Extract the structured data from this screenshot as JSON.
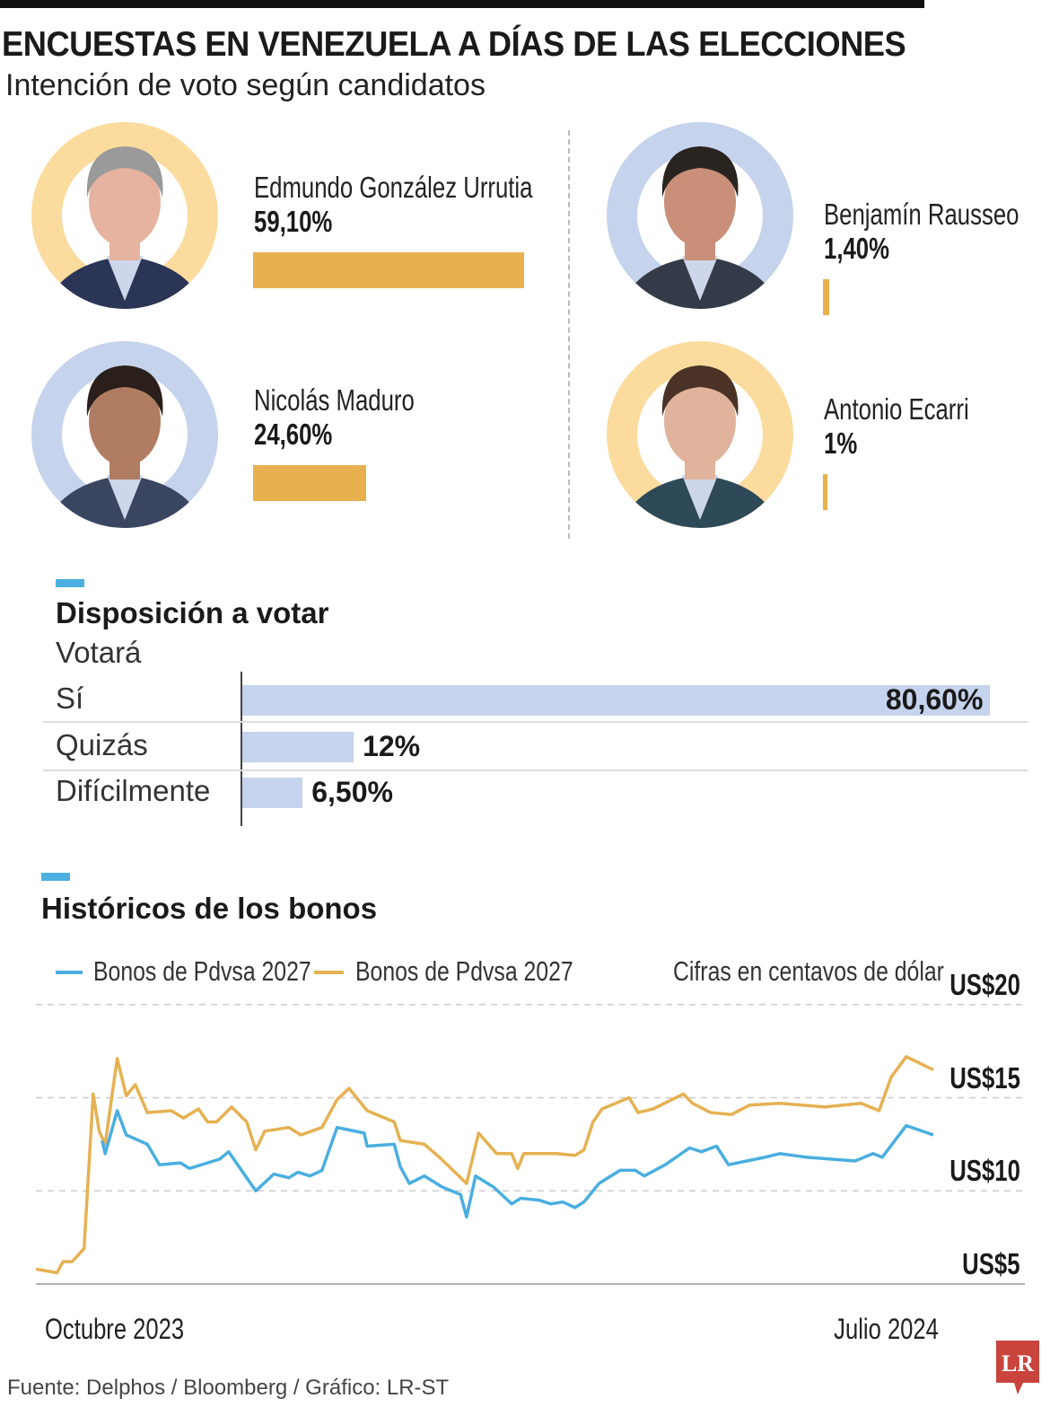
{
  "header": {
    "title": "ENCUESTAS EN VENEZUELA A DÍAS DE LAS ELECCIONES",
    "subtitle": "Intención de voto según candidatos"
  },
  "colors": {
    "bar_orange": "#e8b04f",
    "ring_orange": "#fbdc9e",
    "ring_blue": "#c6d3ec",
    "bar_blue": "#c5d3ec",
    "accent_blue": "#4bb0e0",
    "line_blue": "#4aaee0",
    "line_orange": "#e5b152",
    "logo_red": "#c9443c"
  },
  "candidates": [
    {
      "name": "Edmundo González Urrutia",
      "value_label": "59,10%",
      "value": 59.1,
      "ring": "orange"
    },
    {
      "name": "Nicolás Maduro",
      "value_label": "24,60%",
      "value": 24.6,
      "ring": "blue"
    },
    {
      "name": "Benjamín Rausseo",
      "value_label": "1,40%",
      "value": 1.4,
      "ring": "blue"
    },
    {
      "name": "Antonio Ecarri",
      "value_label": "1%",
      "value": 1.0,
      "ring": "orange"
    }
  ],
  "disposition": {
    "title": "Disposición a votar",
    "subtitle": "Votará",
    "rows": [
      {
        "label": "Sí",
        "value_label": "80,60%",
        "value": 80.6
      },
      {
        "label": "Quizás",
        "value_label": "12%",
        "value": 12
      },
      {
        "label": "Difícilmente",
        "value_label": "6,50%",
        "value": 6.5
      }
    ]
  },
  "chart_data": {
    "type": "line",
    "title": "Históricos de los bonos",
    "note": "Cifras en centavos de dólar",
    "legend_position": "top-left",
    "grid": true,
    "x_tick_labels": [
      "Octubre 2023",
      "Julio 2024"
    ],
    "xlim": [
      "2023-10-01",
      "2024-07-25"
    ],
    "ylim": [
      4,
      20
    ],
    "y_ticks": [
      5,
      10,
      15,
      20
    ],
    "y_tick_labels": [
      "US$5",
      "US$10",
      "US$15",
      "US$20"
    ],
    "series": [
      {
        "name": "Bonos de Pdvsa 2027",
        "color": "blue",
        "points": [
          [
            "2023-10-23",
            12.7
          ],
          [
            "2023-10-24",
            12.0
          ],
          [
            "2023-10-28",
            14.3
          ],
          [
            "2023-10-31",
            13.0
          ],
          [
            "2023-11-07",
            12.5
          ],
          [
            "2023-11-11",
            11.4
          ],
          [
            "2023-11-18",
            11.5
          ],
          [
            "2023-11-21",
            11.2
          ],
          [
            "2023-12-01",
            11.7
          ],
          [
            "2023-12-04",
            12.1
          ],
          [
            "2023-12-07",
            11.4
          ],
          [
            "2023-12-13",
            10.0
          ],
          [
            "2023-12-19",
            10.9
          ],
          [
            "2023-12-24",
            10.7
          ],
          [
            "2023-12-27",
            11.0
          ],
          [
            "2023-12-31",
            10.8
          ],
          [
            "2024-01-04",
            11.1
          ],
          [
            "2024-01-09",
            13.4
          ],
          [
            "2024-01-18",
            13.1
          ],
          [
            "2024-01-19",
            12.4
          ],
          [
            "2024-01-28",
            12.5
          ],
          [
            "2024-01-30",
            11.3
          ],
          [
            "2024-02-02",
            10.4
          ],
          [
            "2024-02-07",
            10.8
          ],
          [
            "2024-02-13",
            10.2
          ],
          [
            "2024-02-19",
            9.8
          ],
          [
            "2024-02-21",
            8.6
          ],
          [
            "2024-02-24",
            10.8
          ],
          [
            "2024-03-01",
            10.2
          ],
          [
            "2024-03-07",
            9.3
          ],
          [
            "2024-03-10",
            9.6
          ],
          [
            "2024-03-16",
            9.5
          ],
          [
            "2024-03-20",
            9.3
          ],
          [
            "2024-03-24",
            9.4
          ],
          [
            "2024-03-28",
            9.1
          ],
          [
            "2024-03-31",
            9.4
          ],
          [
            "2024-04-05",
            10.4
          ],
          [
            "2024-04-12",
            11.1
          ],
          [
            "2024-04-17",
            11.1
          ],
          [
            "2024-04-20",
            10.8
          ],
          [
            "2024-04-27",
            11.4
          ],
          [
            "2024-05-05",
            12.3
          ],
          [
            "2024-05-09",
            12.1
          ],
          [
            "2024-05-14",
            12.4
          ],
          [
            "2024-05-18",
            11.4
          ],
          [
            "2024-05-30",
            11.8
          ],
          [
            "2024-06-04",
            12.0
          ],
          [
            "2024-06-13",
            11.8
          ],
          [
            "2024-06-29",
            11.6
          ],
          [
            "2024-07-05",
            12.0
          ],
          [
            "2024-07-08",
            11.8
          ],
          [
            "2024-07-16",
            13.5
          ],
          [
            "2024-07-25",
            13.0
          ]
        ]
      },
      {
        "name": "Bonos de Pdvsa 2027",
        "color": "orange",
        "points": [
          [
            "2023-10-01",
            5.8
          ],
          [
            "2023-10-08",
            5.6
          ],
          [
            "2023-10-10",
            6.2
          ],
          [
            "2023-10-13",
            6.2
          ],
          [
            "2023-10-17",
            6.9
          ],
          [
            "2023-10-20",
            15.2
          ],
          [
            "2023-10-22",
            13.2
          ],
          [
            "2023-10-24",
            12.5
          ],
          [
            "2023-10-28",
            17.1
          ],
          [
            "2023-10-31",
            15.1
          ],
          [
            "2023-11-03",
            15.7
          ],
          [
            "2023-11-07",
            14.2
          ],
          [
            "2023-11-15",
            14.3
          ],
          [
            "2023-11-19",
            13.9
          ],
          [
            "2023-11-24",
            14.4
          ],
          [
            "2023-11-27",
            13.7
          ],
          [
            "2023-11-30",
            13.7
          ],
          [
            "2023-12-05",
            14.5
          ],
          [
            "2023-12-10",
            13.7
          ],
          [
            "2023-12-13",
            12.2
          ],
          [
            "2023-12-16",
            13.2
          ],
          [
            "2023-12-24",
            13.4
          ],
          [
            "2023-12-28",
            13.0
          ],
          [
            "2024-01-04",
            13.4
          ],
          [
            "2024-01-09",
            14.9
          ],
          [
            "2024-01-13",
            15.5
          ],
          [
            "2024-01-19",
            14.3
          ],
          [
            "2024-01-28",
            13.7
          ],
          [
            "2024-01-30",
            12.7
          ],
          [
            "2024-02-07",
            12.5
          ],
          [
            "2024-02-12",
            11.8
          ],
          [
            "2024-02-21",
            10.4
          ],
          [
            "2024-02-25",
            13.1
          ],
          [
            "2024-03-02",
            12.0
          ],
          [
            "2024-03-07",
            12.0
          ],
          [
            "2024-03-09",
            11.2
          ],
          [
            "2024-03-11",
            12.0
          ],
          [
            "2024-03-22",
            12.0
          ],
          [
            "2024-03-28",
            11.9
          ],
          [
            "2024-03-31",
            12.2
          ],
          [
            "2024-04-03",
            13.7
          ],
          [
            "2024-04-06",
            14.4
          ],
          [
            "2024-04-15",
            15.0
          ],
          [
            "2024-04-18",
            14.2
          ],
          [
            "2024-04-23",
            14.4
          ],
          [
            "2024-05-03",
            15.2
          ],
          [
            "2024-05-06",
            14.7
          ],
          [
            "2024-05-12",
            14.2
          ],
          [
            "2024-05-19",
            14.1
          ],
          [
            "2024-05-25",
            14.6
          ],
          [
            "2024-06-04",
            14.7
          ],
          [
            "2024-06-19",
            14.5
          ],
          [
            "2024-07-01",
            14.7
          ],
          [
            "2024-07-07",
            14.3
          ],
          [
            "2024-07-11",
            16.1
          ],
          [
            "2024-07-16",
            17.2
          ],
          [
            "2024-07-25",
            16.5
          ]
        ]
      }
    ]
  },
  "footer": {
    "source": "Fuente: Delphos / Bloomberg / Gráfico: LR-ST",
    "logo_text": "LR"
  }
}
